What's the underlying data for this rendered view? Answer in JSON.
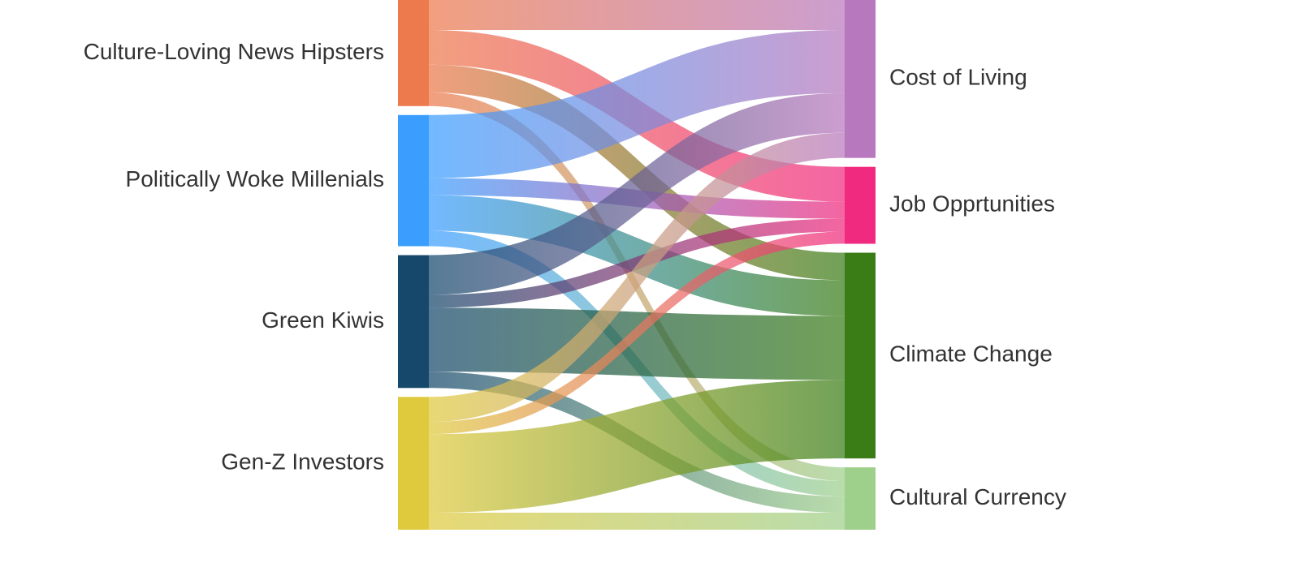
{
  "chart_data": {
    "type": "sankey",
    "nodes": [
      {
        "name": "Culture-Loving News Hipsters",
        "color": "#ec7a4d"
      },
      {
        "name": "Politically Woke Millenials",
        "color": "#3b9eff"
      },
      {
        "name": "Green Kiwis",
        "color": "#16486b"
      },
      {
        "name": "Gen-Z Investors",
        "color": "#dfca3e"
      },
      {
        "name": "Cost of Living",
        "color": "#b878bd"
      },
      {
        "name": "Job Opprtunities",
        "color": "#f02a7e"
      },
      {
        "name": "Climate Change",
        "color": "#3a7d17"
      },
      {
        "name": "Cultural Currency",
        "color": "#9ecf8b"
      }
    ],
    "links": [
      {
        "source": 0,
        "target": 4,
        "value": 37
      },
      {
        "source": 0,
        "target": 5,
        "value": 43
      },
      {
        "source": 0,
        "target": 6,
        "value": 34
      },
      {
        "source": 0,
        "target": 7,
        "value": 17
      },
      {
        "source": 1,
        "target": 4,
        "value": 78
      },
      {
        "source": 1,
        "target": 5,
        "value": 21
      },
      {
        "source": 1,
        "target": 6,
        "value": 44
      },
      {
        "source": 1,
        "target": 7,
        "value": 19
      },
      {
        "source": 2,
        "target": 4,
        "value": 49
      },
      {
        "source": 2,
        "target": 5,
        "value": 16
      },
      {
        "source": 2,
        "target": 6,
        "value": 79
      },
      {
        "source": 2,
        "target": 7,
        "value": 20
      },
      {
        "source": 3,
        "target": 4,
        "value": 31
      },
      {
        "source": 3,
        "target": 5,
        "value": 15
      },
      {
        "source": 3,
        "target": 6,
        "value": 97
      },
      {
        "source": 3,
        "target": 7,
        "value": 21
      }
    ]
  }
}
